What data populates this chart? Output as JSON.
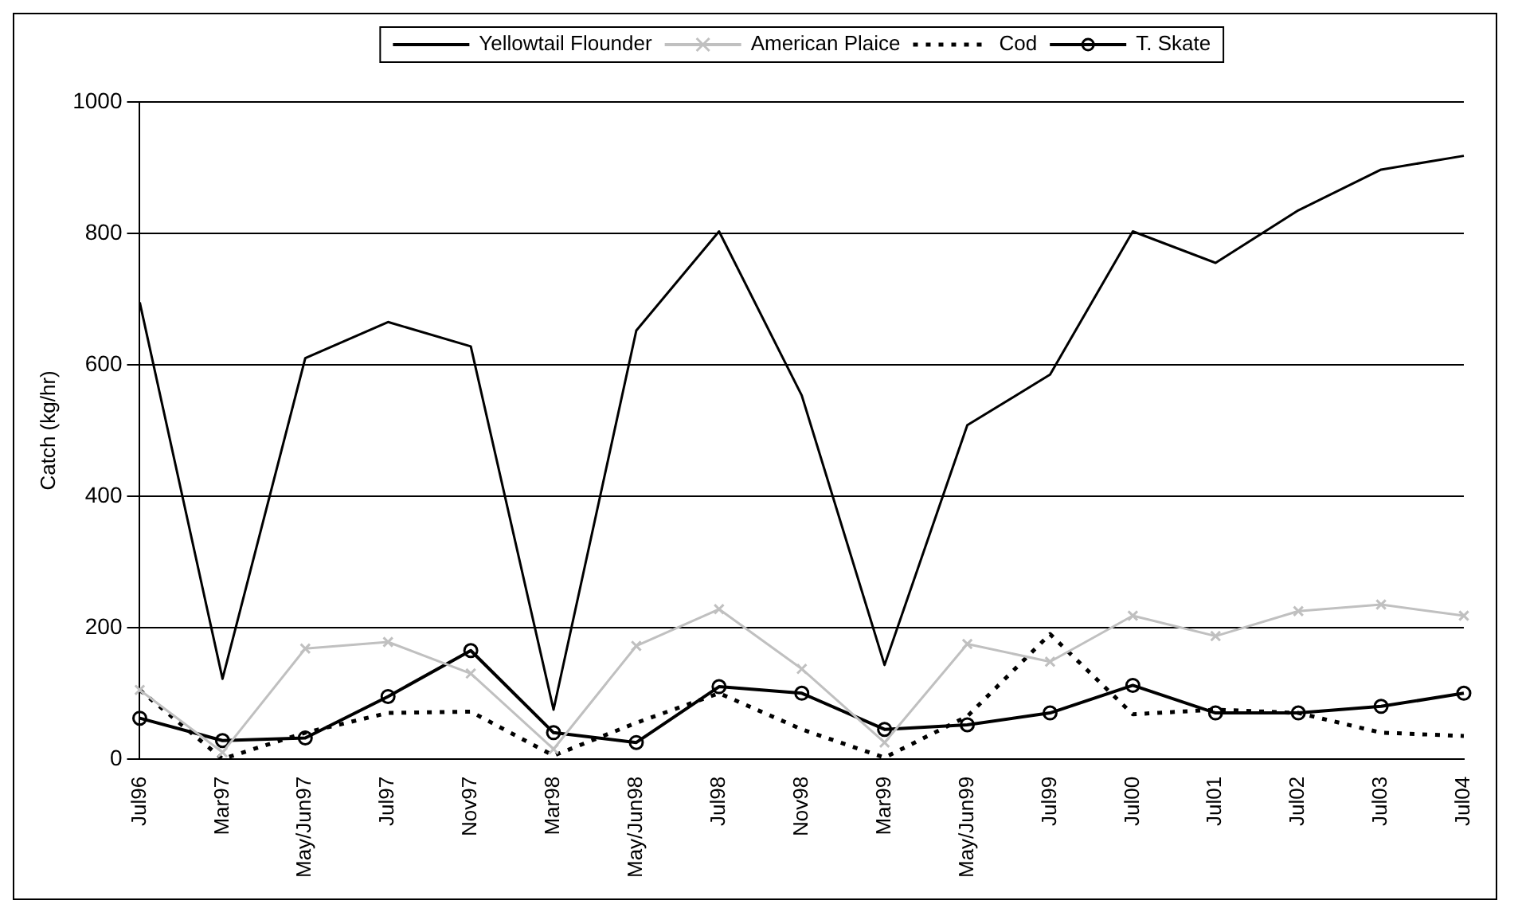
{
  "chart_data": {
    "type": "line",
    "ylabel": "Catch (kg/hr)",
    "categories": [
      "Jul96",
      "Mar97",
      "May/Jun97",
      "Jul97",
      "Nov97",
      "Mar98",
      "May/Jun98",
      "Jul98",
      "Nov98",
      "Mar99",
      "May/Jun99",
      "Jul99",
      "Jul00",
      "Jul01",
      "Jul02",
      "Jul03",
      "Jul04"
    ],
    "series": [
      {
        "name": "Yellowtail Flounder",
        "color": "#000000",
        "marker": "none",
        "line_style": "solid",
        "values": [
          695,
          122,
          610,
          665,
          628,
          75,
          652,
          803,
          553,
          143,
          508,
          585,
          803,
          755,
          835,
          897,
          918
        ]
      },
      {
        "name": "American Plaice",
        "color": "#c0c0c0",
        "marker": "cross",
        "line_style": "solid",
        "values": [
          105,
          10,
          168,
          178,
          130,
          15,
          172,
          228,
          137,
          25,
          175,
          148,
          218,
          187,
          225,
          235,
          218
        ]
      },
      {
        "name": "Cod",
        "color": "#000000",
        "marker": "none",
        "line_style": "dotted",
        "values": [
          105,
          0,
          40,
          70,
          72,
          5,
          55,
          100,
          45,
          2,
          65,
          190,
          68,
          75,
          70,
          40,
          35
        ]
      },
      {
        "name": "T. Skate",
        "color": "#000000",
        "marker": "circle",
        "line_style": "solid",
        "values": [
          62,
          28,
          32,
          95,
          165,
          40,
          25,
          110,
          100,
          45,
          52,
          70,
          112,
          70,
          70,
          80,
          100
        ]
      }
    ],
    "ylim": [
      0,
      1000
    ],
    "yticks": [
      0,
      200,
      400,
      600,
      800,
      1000
    ],
    "grid": "y",
    "legend": "top"
  }
}
